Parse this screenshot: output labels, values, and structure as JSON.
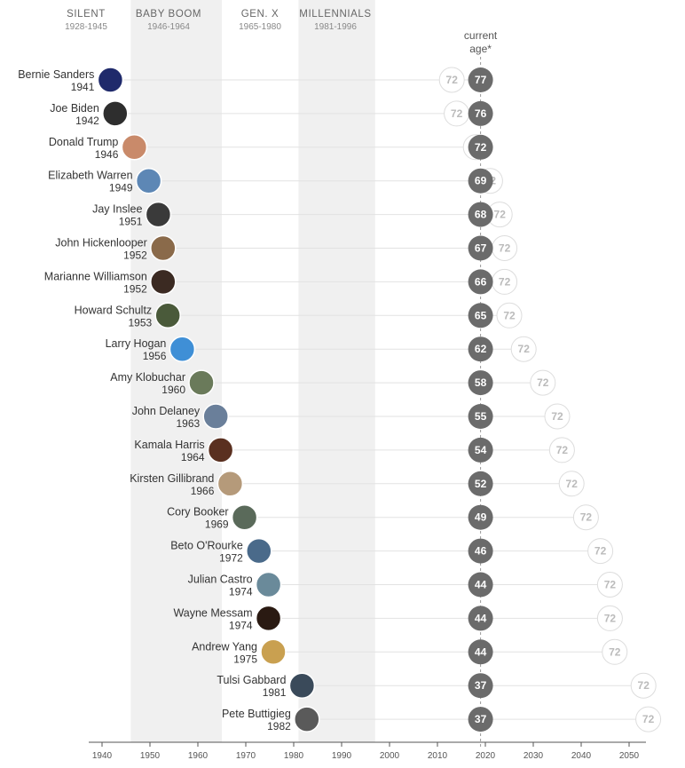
{
  "chart_data": {
    "type": "dot",
    "current_age_label": [
      "current",
      "age*"
    ],
    "current_year": 2019,
    "reference_age": 72,
    "xlim": [
      1939,
      2052
    ],
    "x_ticks": [
      1940,
      1950,
      1960,
      1970,
      1980,
      1990,
      2000,
      2010,
      2020,
      2030,
      2040,
      2050
    ],
    "generations": [
      {
        "name": "SILENT",
        "years": "1928-1945",
        "start": 1928,
        "end": 1945,
        "shaded": false
      },
      {
        "name": "BABY BOOM",
        "years": "1946-1964",
        "start": 1946,
        "end": 1964,
        "shaded": true
      },
      {
        "name": "GEN. X",
        "years": "1965-1980",
        "start": 1965,
        "end": 1980,
        "shaded": false
      },
      {
        "name": "MILLENNIALS",
        "years": "1981-1996",
        "start": 1981,
        "end": 1996,
        "shaded": true
      }
    ],
    "candidates": [
      {
        "name": "Bernie Sanders",
        "birth_year": 1941,
        "current_age": 77,
        "ref_age": 72,
        "avatar_color": "#1f2a6b"
      },
      {
        "name": "Joe Biden",
        "birth_year": 1942,
        "current_age": 76,
        "ref_age": 72,
        "avatar_color": "#2e2e2e"
      },
      {
        "name": "Donald Trump",
        "birth_year": 1946,
        "current_age": 72,
        "ref_age": 72,
        "avatar_color": "#c98a6a"
      },
      {
        "name": "Elizabeth Warren",
        "birth_year": 1949,
        "current_age": 69,
        "ref_age": 72,
        "avatar_color": "#5d87b5"
      },
      {
        "name": "Jay Inslee",
        "birth_year": 1951,
        "current_age": 68,
        "ref_age": 72,
        "avatar_color": "#3a3a3a"
      },
      {
        "name": "John Hickenlooper",
        "birth_year": 1952,
        "current_age": 67,
        "ref_age": 72,
        "avatar_color": "#8a6a4a"
      },
      {
        "name": "Marianne Williamson",
        "birth_year": 1952,
        "current_age": 66,
        "ref_age": 72,
        "avatar_color": "#3b2a22"
      },
      {
        "name": "Howard Schultz",
        "birth_year": 1953,
        "current_age": 65,
        "ref_age": 72,
        "avatar_color": "#4a5a3a"
      },
      {
        "name": "Larry Hogan",
        "birth_year": 1956,
        "current_age": 62,
        "ref_age": 72,
        "avatar_color": "#3f8fd6"
      },
      {
        "name": "Amy Klobuchar",
        "birth_year": 1960,
        "current_age": 58,
        "ref_age": 72,
        "avatar_color": "#6a7a5a"
      },
      {
        "name": "John Delaney",
        "birth_year": 1963,
        "current_age": 55,
        "ref_age": 72,
        "avatar_color": "#6a7f9a"
      },
      {
        "name": "Kamala Harris",
        "birth_year": 1964,
        "current_age": 54,
        "ref_age": 72,
        "avatar_color": "#5a3020"
      },
      {
        "name": "Kirsten Gillibrand",
        "birth_year": 1966,
        "current_age": 52,
        "ref_age": 72,
        "avatar_color": "#b59a7a"
      },
      {
        "name": "Cory Booker",
        "birth_year": 1969,
        "current_age": 49,
        "ref_age": 72,
        "avatar_color": "#5a6a5a"
      },
      {
        "name": "Beto O'Rourke",
        "birth_year": 1972,
        "current_age": 46,
        "ref_age": 72,
        "avatar_color": "#4a6a8a"
      },
      {
        "name": "Julian Castro",
        "birth_year": 1974,
        "current_age": 44,
        "ref_age": 72,
        "avatar_color": "#6a8a9a"
      },
      {
        "name": "Wayne Messam",
        "birth_year": 1974,
        "current_age": 44,
        "ref_age": 72,
        "avatar_color": "#2a1a12"
      },
      {
        "name": "Andrew Yang",
        "birth_year": 1975,
        "current_age": 44,
        "ref_age": 72,
        "avatar_color": "#c9a050"
      },
      {
        "name": "Tulsi Gabbard",
        "birth_year": 1981,
        "current_age": 37,
        "ref_age": 72,
        "avatar_color": "#3a4a5a"
      },
      {
        "name": "Pete Buttigieg",
        "birth_year": 1982,
        "current_age": 37,
        "ref_age": 72,
        "avatar_color": "#5a5a5a"
      }
    ]
  }
}
